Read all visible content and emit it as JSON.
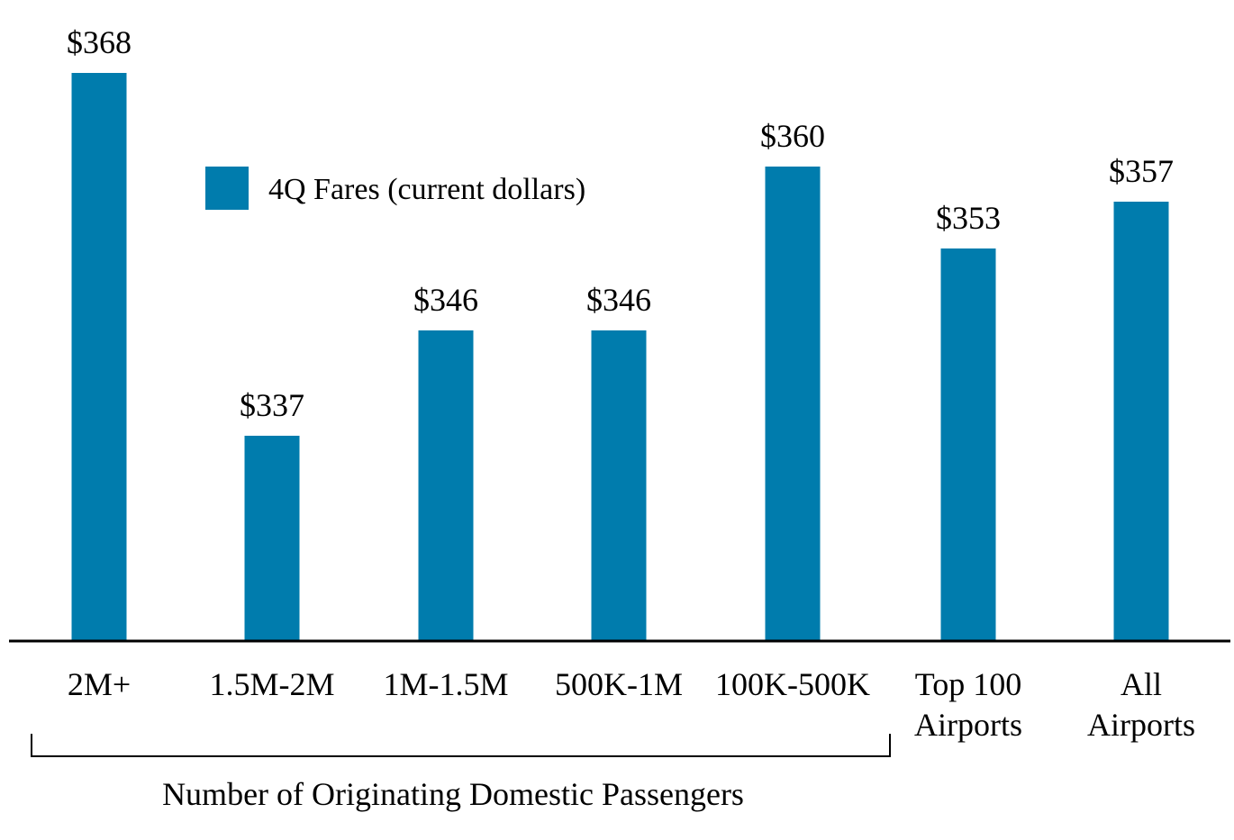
{
  "chart_data": {
    "type": "bar",
    "categories": [
      [
        "2M+"
      ],
      [
        "1.5M-2M"
      ],
      [
        "1M-1.5M"
      ],
      [
        "500K-1M"
      ],
      [
        "100K-500K"
      ],
      [
        "Top 100",
        "Airports"
      ],
      [
        "All",
        "Airports"
      ]
    ],
    "series": [
      {
        "name": "4Q Fares (current dollars)",
        "values": [
          368,
          337,
          346,
          346,
          360,
          353,
          357
        ],
        "color": "#007cad"
      }
    ],
    "data_labels": [
      "$368",
      "$337",
      "$346",
      "$346",
      "$360",
      "$353",
      "$357"
    ],
    "group_label": "Number of Originating Domestic Passengers",
    "grouped_categories": 5,
    "legend_placement": "top-left",
    "grid": false,
    "title": "",
    "xlabel": "",
    "ylabel": ""
  }
}
